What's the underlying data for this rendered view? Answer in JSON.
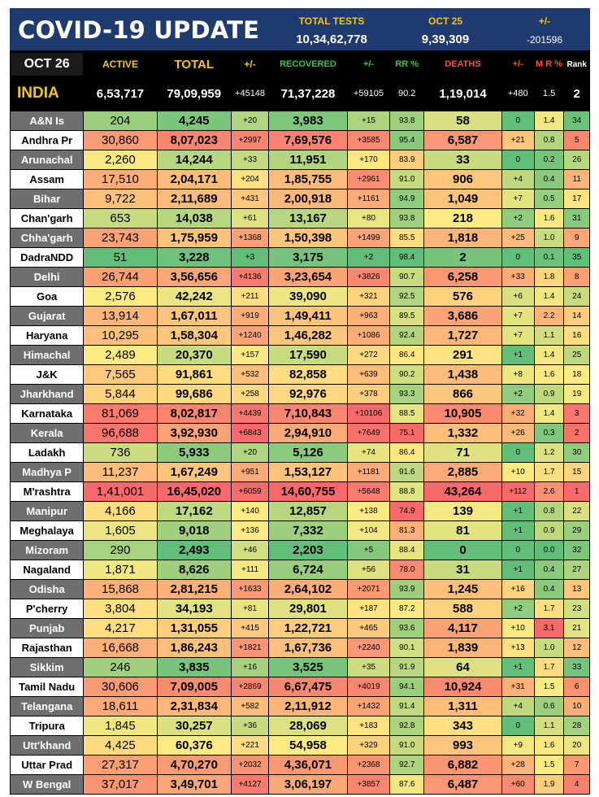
{
  "banner": {
    "title": "COVID-19 UPDATE",
    "tests_label": "TOTAL TESTS",
    "tests_value": "10,34,62,778",
    "date_label": "OCT 25",
    "date_value": "9,39,309",
    "change_label": "+/-",
    "change_value": "-201596"
  },
  "header": {
    "date": "OCT 26",
    "active": "ACTIVE",
    "total": "TOTAL",
    "total_change": "+/-",
    "recovered": "RECOVERED",
    "recovered_change": "+/-",
    "rr": "RR %",
    "deaths": "DEATHS",
    "deaths_change": "+/-",
    "mr": "M R %",
    "rank": "Rank"
  },
  "india": [
    "INDIA",
    "6,53,717",
    "79,09,959",
    "+45148",
    "71,37,228",
    "+59105",
    "90.2",
    "1,19,014",
    "+480",
    "1.5",
    "2"
  ],
  "colors": {
    "banner_bg": "#1f3a6e",
    "accent_yellow": "#f5c518",
    "recovered_green": "#35c54a",
    "deaths_red": "#ff4d3d"
  },
  "rows": [
    [
      "A&N Is",
      "204",
      "4,245",
      "+20",
      "3,983",
      "+15",
      "93.8",
      "58",
      "0",
      "1.4",
      "34"
    ],
    [
      "Andhra Pr",
      "30,860",
      "8,07,023",
      "+2997",
      "7,69,576",
      "+3585",
      "95.4",
      "6,587",
      "+21",
      "0.8",
      "5"
    ],
    [
      "Arunachal",
      "2,260",
      "14,244",
      "+33",
      "11,951",
      "+170",
      "83.9",
      "33",
      "0",
      "0.2",
      "26"
    ],
    [
      "Assam",
      "17,510",
      "2,04,171",
      "+204",
      "1,85,755",
      "+2961",
      "91.0",
      "906",
      "+4",
      "0.4",
      "11"
    ],
    [
      "Bihar",
      "9,722",
      "2,11,689",
      "+431",
      "2,00,918",
      "+1161",
      "94.9",
      "1,049",
      "+7",
      "0.5",
      "17"
    ],
    [
      "Chan'garh",
      "653",
      "14,038",
      "+61",
      "13,167",
      "+80",
      "93.8",
      "218",
      "+2",
      "1.6",
      "31"
    ],
    [
      "Chha'garh",
      "23,743",
      "1,75,959",
      "+1368",
      "1,50,398",
      "+1499",
      "85.5",
      "1,818",
      "+25",
      "1.0",
      "9"
    ],
    [
      "DadraNDD",
      "51",
      "3,228",
      "+3",
      "3,175",
      "+2",
      "98.4",
      "2",
      "0",
      "0.1",
      "35"
    ],
    [
      "Delhi",
      "26,744",
      "3,56,656",
      "+4136",
      "3,23,654",
      "+3826",
      "90.7",
      "6,258",
      "+33",
      "1.8",
      "8"
    ],
    [
      "Goa",
      "2,576",
      "42,242",
      "+211",
      "39,090",
      "+321",
      "92.5",
      "576",
      "+6",
      "1.4",
      "24"
    ],
    [
      "Gujarat",
      "13,914",
      "1,67,011",
      "+919",
      "1,49,411",
      "+963",
      "89.5",
      "3,686",
      "+7",
      "2.2",
      "14"
    ],
    [
      "Haryana",
      "10,295",
      "1,58,304",
      "+1240",
      "1,46,282",
      "+1086",
      "92.4",
      "1,727",
      "+7",
      "1.1",
      "16"
    ],
    [
      "Himachal",
      "2,489",
      "20,370",
      "+157",
      "17,590",
      "+272",
      "86.4",
      "291",
      "+1",
      "1.4",
      "25"
    ],
    [
      "J&K",
      "7,565",
      "91,861",
      "+532",
      "82,858",
      "+639",
      "90.2",
      "1,438",
      "+8",
      "1.6",
      "18"
    ],
    [
      "Jharkhand",
      "5,844",
      "99,686",
      "+258",
      "92,976",
      "+378",
      "93.3",
      "866",
      "+2",
      "0.9",
      "19"
    ],
    [
      "Karnataka",
      "81,069",
      "8,02,817",
      "+4439",
      "7,10,843",
      "+10106",
      "88.5",
      "10,905",
      "+32",
      "1.4",
      "3"
    ],
    [
      "Kerala",
      "96,688",
      "3,92,930",
      "+6843",
      "2,94,910",
      "+7649",
      "75.1",
      "1,332",
      "+26",
      "0.3",
      "2"
    ],
    [
      "Ladakh",
      "736",
      "5,933",
      "+20",
      "5,126",
      "+74",
      "86.4",
      "71",
      "0",
      "1.2",
      "30"
    ],
    [
      "Madhya P",
      "11,237",
      "1,67,249",
      "+951",
      "1,53,127",
      "+1181",
      "91.6",
      "2,885",
      "+10",
      "1.7",
      "15"
    ],
    [
      "M'rashtra",
      "1,41,001",
      "16,45,020",
      "+6059",
      "14,60,755",
      "+5648",
      "88.8",
      "43,264",
      "+112",
      "2.6",
      "1"
    ],
    [
      "Manipur",
      "4,166",
      "17,162",
      "+140",
      "12,857",
      "+138",
      "74.9",
      "139",
      "+1",
      "0.8",
      "22"
    ],
    [
      "Meghalaya",
      "1,605",
      "9,018",
      "+136",
      "7,332",
      "+104",
      "81.3",
      "81",
      "+1",
      "0.9",
      "29"
    ],
    [
      "Mizoram",
      "290",
      "2,493",
      "+46",
      "2,203",
      "+5",
      "88.4",
      "0",
      "0",
      "0.0",
      "32"
    ],
    [
      "Nagaland",
      "1,871",
      "8,626",
      "+111",
      "6,724",
      "+56",
      "78.0",
      "31",
      "+1",
      "0.4",
      "27"
    ],
    [
      "Odisha",
      "15,868",
      "2,81,215",
      "+1633",
      "2,64,102",
      "+2071",
      "93.9",
      "1,245",
      "+16",
      "0.4",
      "13"
    ],
    [
      "P'cherry",
      "3,804",
      "34,193",
      "+81",
      "29,801",
      "+187",
      "87.2",
      "588",
      "+2",
      "1.7",
      "23"
    ],
    [
      "Punjab",
      "4,217",
      "1,31,055",
      "+415",
      "1,22,721",
      "+465",
      "93.6",
      "4,117",
      "+10",
      "3.1",
      "21"
    ],
    [
      "Rajasthan",
      "16,668",
      "1,86,243",
      "+1821",
      "1,67,736",
      "+2240",
      "90.1",
      "1,839",
      "+13",
      "1.0",
      "12"
    ],
    [
      "Sikkim",
      "246",
      "3,835",
      "+16",
      "3,525",
      "+35",
      "91.9",
      "64",
      "+1",
      "1.7",
      "33"
    ],
    [
      "Tamil Nadu",
      "30,606",
      "7,09,005",
      "+2869",
      "6,67,475",
      "+4019",
      "94.1",
      "10,924",
      "+31",
      "1.5",
      "6"
    ],
    [
      "Telangana",
      "18,611",
      "2,31,834",
      "+582",
      "2,11,912",
      "+1432",
      "91.4",
      "1,311",
      "+4",
      "0.6",
      "10"
    ],
    [
      "Tripura",
      "1,845",
      "30,257",
      "+36",
      "28,069",
      "+183",
      "92.8",
      "343",
      "0",
      "1.1",
      "28"
    ],
    [
      "Utt'khand",
      "4,425",
      "60,376",
      "+221",
      "54,958",
      "+329",
      "91.0",
      "993",
      "+9",
      "1.6",
      "20"
    ],
    [
      "Uttar Prad",
      "27,317",
      "4,70,270",
      "+2032",
      "4,36,071",
      "+2368",
      "92.7",
      "6,882",
      "+28",
      "1.5",
      "7"
    ],
    [
      "W Bengal",
      "37,017",
      "3,49,701",
      "+4127",
      "3,06,197",
      "+3857",
      "87.6",
      "6,487",
      "+60",
      "1.9",
      "4"
    ]
  ]
}
